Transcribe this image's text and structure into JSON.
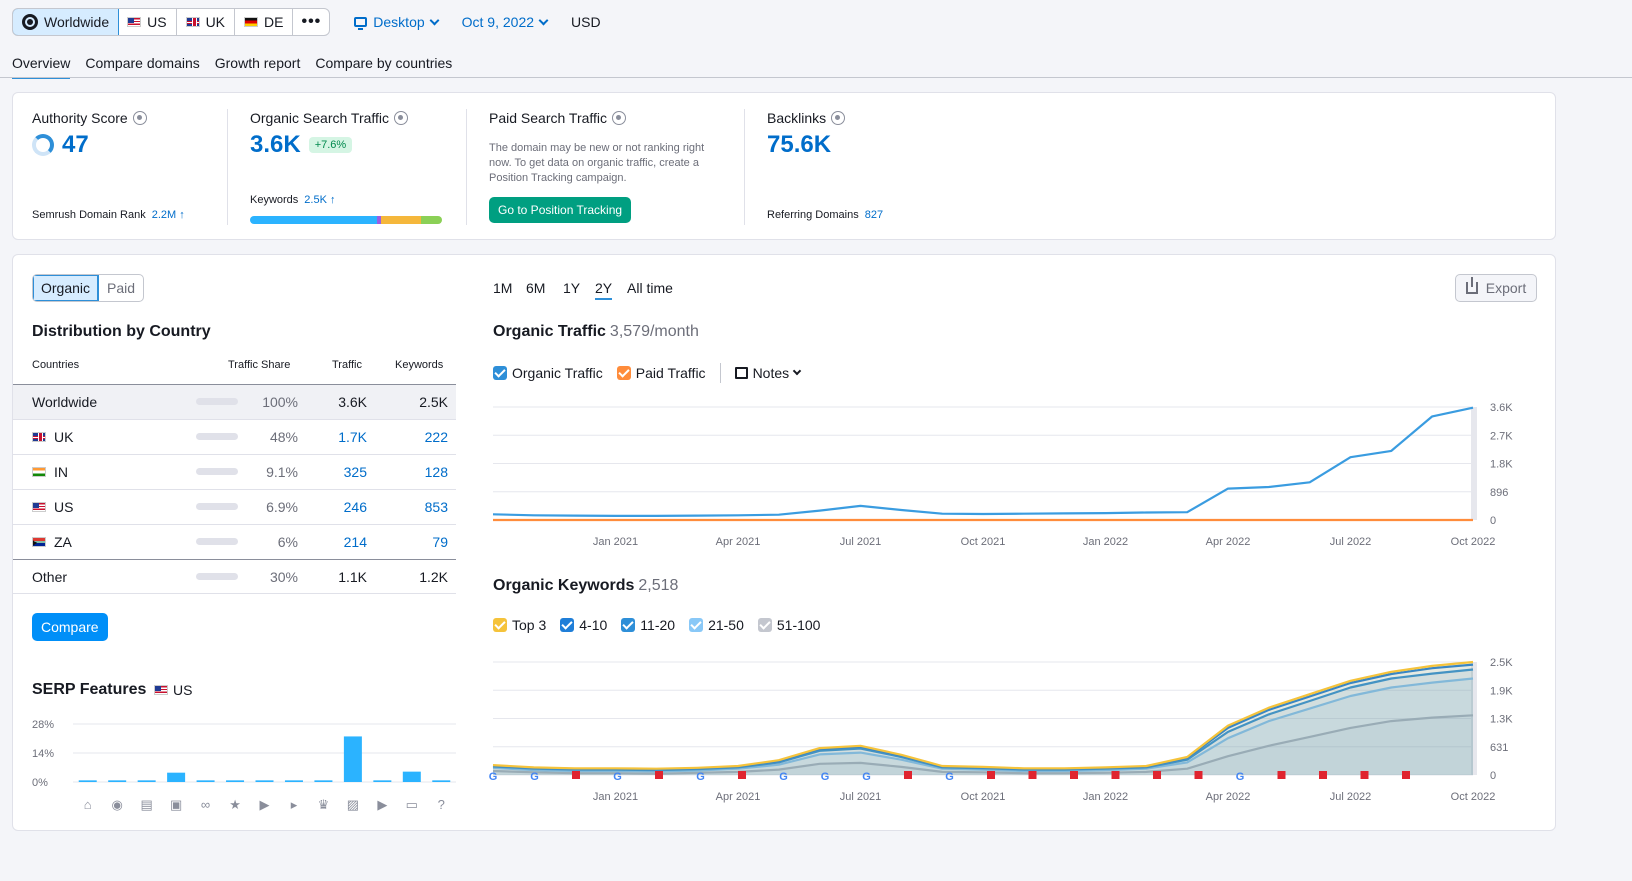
{
  "topbar": {
    "regions": [
      {
        "label": "Worldwide",
        "icon": "globe-icon",
        "active": true
      },
      {
        "label": "US",
        "icon": "flag-us-icon"
      },
      {
        "label": "UK",
        "icon": "flag-uk-icon"
      },
      {
        "label": "DE",
        "icon": "flag-de-icon"
      }
    ],
    "more_label": "•••",
    "device": "Desktop",
    "date": "Oct 9, 2022",
    "currency": "USD"
  },
  "tabs": [
    "Overview",
    "Compare domains",
    "Growth report",
    "Compare by countries"
  ],
  "metrics": {
    "authority": {
      "title": "Authority Score",
      "value": "47",
      "rank_label": "Semrush Domain Rank",
      "rank_value": "2.2M ↑"
    },
    "organic": {
      "title": "Organic Search Traffic",
      "value": "3.6K",
      "change": "+7.6%",
      "keywords_label": "Keywords",
      "keywords_value": "2.5K ↑",
      "bar_segments": [
        {
          "color": "#2bb3ff",
          "share": 0.66
        },
        {
          "color": "#9b5de5",
          "share": 0.02
        },
        {
          "color": "#f5b73b",
          "share": 0.21
        },
        {
          "color": "#8bd056",
          "share": 0.11
        }
      ]
    },
    "paid": {
      "title": "Paid Search Traffic",
      "text": "The domain may be new or not ranking right now. To get data on organic traffic, create a Position Tracking campaign.",
      "button": "Go to Position Tracking"
    },
    "backlinks": {
      "title": "Backlinks",
      "value": "75.6K",
      "ref_label": "Referring Domains",
      "ref_value": "827"
    }
  },
  "left": {
    "toggle": [
      "Organic",
      "Paid"
    ],
    "dist_title": "Distribution by Country",
    "columns": [
      "Countries",
      "Traffic Share",
      "Traffic",
      "Keywords"
    ],
    "rows": [
      {
        "country": "Worldwide",
        "flag": "",
        "share": "100%",
        "share_val": 1.0,
        "traffic": "3.6K",
        "keywords": "2.5K"
      },
      {
        "country": "UK",
        "flag": "uk",
        "share": "48%",
        "share_val": 0.48,
        "traffic": "1.7K",
        "keywords": "222"
      },
      {
        "country": "IN",
        "flag": "in",
        "share": "9.1%",
        "share_val": 0.091,
        "traffic": "325",
        "keywords": "128"
      },
      {
        "country": "US",
        "flag": "us",
        "share": "6.9%",
        "share_val": 0.069,
        "traffic": "246",
        "keywords": "853"
      },
      {
        "country": "ZA",
        "flag": "za",
        "share": "6%",
        "share_val": 0.06,
        "traffic": "214",
        "keywords": "79"
      },
      {
        "country": "Other",
        "flag": "",
        "share": "30%",
        "share_val": 0.3,
        "traffic": "1.1K",
        "keywords": "1.2K"
      }
    ],
    "compare_button": "Compare",
    "serp_title": "SERP Features",
    "serp_country": "US"
  },
  "right": {
    "periods": [
      "1M",
      "6M",
      "1Y",
      "2Y",
      "All time"
    ],
    "active_period": "2Y",
    "export_label": "Export",
    "traffic_title": "Organic Traffic",
    "traffic_value": "3,579/month",
    "traffic_legend": [
      {
        "label": "Organic Traffic",
        "color": "#2e8fd8"
      },
      {
        "label": "Paid Traffic",
        "color": "#ff8c3b"
      }
    ],
    "notes_label": "Notes",
    "keywords_title": "Organic Keywords",
    "keywords_value": "2,518",
    "keywords_legend": [
      {
        "label": "Top 3",
        "color": "#f5c33b"
      },
      {
        "label": "4-10",
        "color": "#1f7ed8"
      },
      {
        "label": "11-20",
        "color": "#2e8fd8"
      },
      {
        "label": "21-50",
        "color": "#89c8f7"
      },
      {
        "label": "51-100",
        "color": "#c4c7cf"
      }
    ]
  },
  "chart_data": [
    {
      "type": "line",
      "title": "Organic Traffic",
      "x_ticks": [
        "Jan 2021",
        "Apr 2021",
        "Jul 2021",
        "Oct 2021",
        "Jan 2022",
        "Apr 2022",
        "Jul 2022",
        "Oct 2022"
      ],
      "y_ticks": [
        "3.6K",
        "2.7K",
        "1.8K",
        "896",
        "0"
      ],
      "ylim": [
        0,
        3600
      ],
      "x": [
        "2020-10",
        "2020-11",
        "2020-12",
        "2021-01",
        "2021-02",
        "2021-03",
        "2021-04",
        "2021-05",
        "2021-06",
        "2021-07",
        "2021-08",
        "2021-09",
        "2021-10",
        "2021-11",
        "2021-12",
        "2022-01",
        "2022-02",
        "2022-03",
        "2022-04",
        "2022-05",
        "2022-06",
        "2022-07",
        "2022-08",
        "2022-09",
        "2022-10"
      ],
      "series": [
        {
          "name": "Organic Traffic",
          "color": "#3a9ce0",
          "values": [
            180,
            150,
            140,
            130,
            130,
            140,
            150,
            170,
            300,
            450,
            320,
            200,
            190,
            200,
            210,
            220,
            240,
            250,
            1000,
            1050,
            1200,
            2000,
            2200,
            3300,
            3579
          ]
        },
        {
          "name": "Paid Traffic",
          "color": "#ff8c3b",
          "values": [
            0,
            0,
            0,
            0,
            0,
            0,
            0,
            0,
            0,
            0,
            0,
            0,
            0,
            0,
            0,
            0,
            0,
            0,
            0,
            0,
            0,
            0,
            0,
            0,
            0
          ]
        }
      ]
    },
    {
      "type": "area",
      "title": "Organic Keywords",
      "x_ticks": [
        "Jan 2021",
        "Apr 2021",
        "Jul 2021",
        "Oct 2021",
        "Jan 2022",
        "Apr 2022",
        "Jul 2022",
        "Oct 2022"
      ],
      "y_ticks": [
        "2.5K",
        "1.9K",
        "1.3K",
        "631",
        "0"
      ],
      "ylim": [
        0,
        2518
      ],
      "x": [
        "2020-10",
        "2020-11",
        "2020-12",
        "2021-01",
        "2021-02",
        "2021-03",
        "2021-04",
        "2021-05",
        "2021-06",
        "2021-07",
        "2021-08",
        "2021-09",
        "2021-10",
        "2021-11",
        "2021-12",
        "2022-01",
        "2022-02",
        "2022-03",
        "2022-04",
        "2022-05",
        "2022-06",
        "2022-07",
        "2022-08",
        "2022-09",
        "2022-10"
      ],
      "series": [
        {
          "name": "Top 3",
          "color": "#f5c33b",
          "values": [
            220,
            170,
            150,
            150,
            140,
            160,
            200,
            330,
            600,
            650,
            450,
            200,
            180,
            150,
            150,
            170,
            200,
            400,
            1100,
            1500,
            1800,
            2100,
            2300,
            2430,
            2518
          ]
        },
        {
          "name": "4-10",
          "color": "#1f7ed8",
          "values": [
            210,
            160,
            140,
            140,
            130,
            150,
            190,
            310,
            580,
            630,
            430,
            190,
            170,
            140,
            140,
            160,
            190,
            380,
            1050,
            1450,
            1750,
            2050,
            2250,
            2380,
            2460
          ]
        },
        {
          "name": "11-20",
          "color": "#2e8fd8",
          "values": [
            190,
            140,
            120,
            120,
            110,
            130,
            170,
            280,
            540,
            590,
            400,
            170,
            150,
            120,
            120,
            140,
            170,
            340,
            960,
            1350,
            1650,
            1950,
            2150,
            2260,
            2350
          ]
        },
        {
          "name": "21-50",
          "color": "#89c8f7",
          "values": [
            160,
            110,
            90,
            90,
            80,
            100,
            140,
            230,
            460,
            500,
            340,
            140,
            120,
            90,
            90,
            110,
            140,
            280,
            820,
            1200,
            1480,
            1760,
            1950,
            2060,
            2150
          ]
        },
        {
          "name": "51-100",
          "color": "#b0b3bd",
          "values": [
            90,
            60,
            40,
            40,
            30,
            50,
            70,
            120,
            250,
            270,
            180,
            70,
            60,
            40,
            40,
            50,
            70,
            140,
            420,
            650,
            850,
            1050,
            1200,
            1280,
            1330
          ]
        }
      ]
    },
    {
      "type": "bar",
      "title": "SERP Features",
      "y_ticks": [
        "28%",
        "14%",
        "0%"
      ],
      "ylim": [
        0,
        28
      ],
      "categories": [
        "knowledge-panel",
        "local-pack",
        "featured-snippet",
        "image-pack",
        "sitelinks",
        "reviews",
        "video",
        "video-carousel",
        "top-stories",
        "image",
        "faq",
        "people-also-ask",
        "questions"
      ],
      "values": [
        0.8,
        0.8,
        0.8,
        4.5,
        0.8,
        0.8,
        0.8,
        0.8,
        0.8,
        22,
        0.8,
        5,
        0.8
      ]
    }
  ]
}
